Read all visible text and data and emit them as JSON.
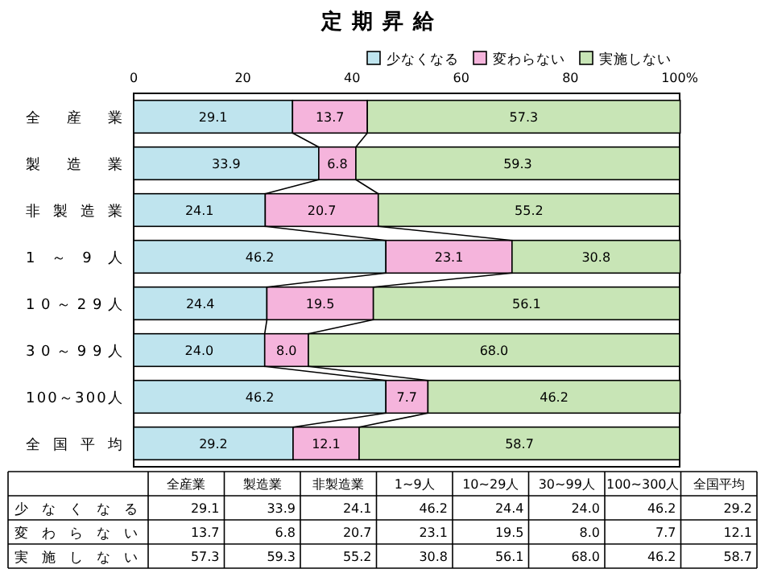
{
  "chart_data": [
    {
      "type": "bar",
      "orientation": "horizontal",
      "stacked": true,
      "title": "定期昇給",
      "categories": [
        "全産業",
        "製造業",
        "非製造業",
        "1～9人",
        "10～29人",
        "30～99人",
        "100～300人",
        "全国平均"
      ],
      "series": [
        {
          "name": "少なくなる",
          "color": "#bfe4ee",
          "values": [
            29.1,
            33.9,
            24.1,
            46.2,
            24.4,
            24.0,
            46.2,
            29.2
          ],
          "value_labels": [
            "29.1",
            "33.9",
            "24.1",
            "46.2",
            "24.4",
            "24.0",
            "46.2",
            "29.2"
          ]
        },
        {
          "name": "変わらない",
          "color": "#f5b4dc",
          "values": [
            13.7,
            6.8,
            20.7,
            23.1,
            19.5,
            8.0,
            7.7,
            12.1
          ],
          "value_labels": [
            "13.7",
            "6.8",
            "20.7",
            "23.1",
            "19.5",
            "8.0",
            "7.7",
            "12.1"
          ]
        },
        {
          "name": "実施しない",
          "color": "#c8e5b6",
          "values": [
            57.3,
            59.3,
            55.2,
            30.8,
            56.1,
            68.0,
            46.2,
            58.7
          ],
          "value_labels": [
            "57.3",
            "59.3",
            "55.2",
            "30.8",
            "56.1",
            "68.0",
            "46.2",
            "58.7"
          ]
        }
      ],
      "xlim": [
        0,
        100
      ],
      "xticks": [
        0,
        20,
        40,
        60,
        80,
        {
          "value": 100,
          "label": "100%"
        }
      ],
      "legend": "top right"
    },
    {
      "type": "heatmap",
      "categories": [
        "全産業",
        "製造業",
        "非製造業",
        "1~9人",
        "10~29人",
        "30~99人",
        "100~300人",
        "全国平均"
      ],
      "y_categories": [
        "少なくなる",
        "変わらない",
        "実施しない"
      ],
      "cells": [
        [
          29.1,
          33.9,
          24.1,
          46.2,
          24.4,
          24.0,
          46.2,
          29.2
        ],
        [
          13.7,
          6.8,
          20.7,
          23.1,
          19.5,
          8.0,
          7.7,
          12.1
        ],
        [
          57.3,
          59.3,
          55.2,
          30.8,
          56.1,
          68.0,
          46.2,
          58.7
        ]
      ],
      "cell_labels": [
        [
          "29.1",
          "33.9",
          "24.1",
          "46.2",
          "24.4",
          "24.0",
          "46.2",
          "29.2"
        ],
        [
          "13.7",
          "6.8",
          "20.7",
          "23.1",
          "19.5",
          "8.0",
          "7.7",
          "12.1"
        ],
        [
          "57.3",
          "59.3",
          "55.2",
          "30.8",
          "56.1",
          "68.0",
          "46.2",
          "58.7"
        ]
      ]
    }
  ]
}
